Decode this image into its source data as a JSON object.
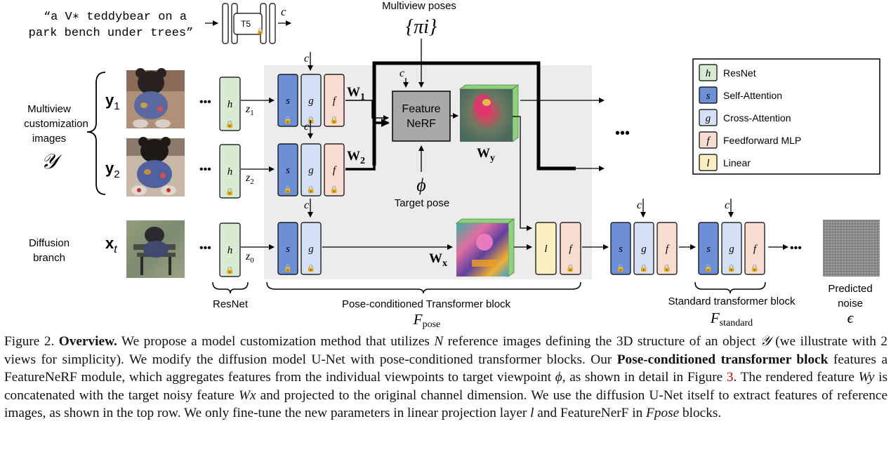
{
  "prompt": {
    "line1": "“a V∗ teddybear on a",
    "line2": "park bench under trees”"
  },
  "encoder": {
    "label": "T5",
    "out": "c"
  },
  "multiview_poses": {
    "title": "Multiview poses",
    "symbol": "{πi}"
  },
  "left_labels": {
    "multiview": [
      "Multiview",
      "customization",
      "images"
    ],
    "multiview_symbol": "𝒴",
    "diffusion": [
      "Diffusion",
      "branch"
    ]
  },
  "rows": {
    "y1": {
      "label": "y1",
      "z": "z1",
      "w": "W1"
    },
    "y2": {
      "label": "y2",
      "z": "z2",
      "w": "W2"
    },
    "xt": {
      "label": "xt",
      "z": "z0"
    }
  },
  "block_letters": {
    "h": "h",
    "s": "s",
    "g": "g",
    "f": "f",
    "l": "l",
    "c": "c",
    "dots": "•••"
  },
  "nerf": {
    "label_line1": "Feature",
    "label_line2": "NeRF",
    "wy": "Wy",
    "wx": "Wx"
  },
  "target_pose": {
    "symbol": "ϕ",
    "label": "Target pose"
  },
  "legend": [
    {
      "letter": "h",
      "name": "ResNet",
      "color": "#d9ead3"
    },
    {
      "letter": "s",
      "name": "Self-Attention",
      "color": "#6d8fd6"
    },
    {
      "letter": "g",
      "name": "Cross-Attention",
      "color": "#d6e0f4"
    },
    {
      "letter": "f",
      "name": "Feedforward MLP",
      "color": "#f8dcd2"
    },
    {
      "letter": "l",
      "name": "Linear",
      "color": "#fcefc4"
    }
  ],
  "braces": {
    "resnet": "ResNet",
    "pose_block": "Pose-conditioned Transformer block",
    "pose_symbol": "Fpose",
    "standard_block": "Standard transformer block",
    "standard_symbol": "Fstandard"
  },
  "noise": {
    "line1": "Predicted",
    "line2": "noise",
    "symbol": "ϵ"
  },
  "caption": {
    "fig": "Figure 2.",
    "bold1": "Overview.",
    "t1": " We propose a model customization method that utilizes ",
    "N": "N",
    "t2": " reference images defining the 3D structure of an object ",
    "Y": "𝒴",
    "t3": " (we illustrate with 2 views for simplicity). We modify the diffusion model U-Net with pose-conditioned transformer blocks. Our ",
    "bold2": "Pose-conditioned transformer block",
    "t4": " features a FeatureNeRF module, which aggregates features from the individual viewpoints to target viewpoint ",
    "phi": "ϕ",
    "t5": ", as shown in detail in Figure ",
    "ref": "3",
    "t6": ". The rendered feature ",
    "Wy": "Wy",
    "t7": " is concatenated with the target noisy feature ",
    "Wx": "Wx",
    "t8": " and projected to the original channel dimension. We use the diffusion U-Net itself to extract features of reference images, as shown in the top row. We only fine-tune the new parameters in linear projection layer ",
    "l": "l",
    "t9": " and FeatureNerF in ",
    "Fpose": "Fpose",
    "t10": " blocks."
  }
}
